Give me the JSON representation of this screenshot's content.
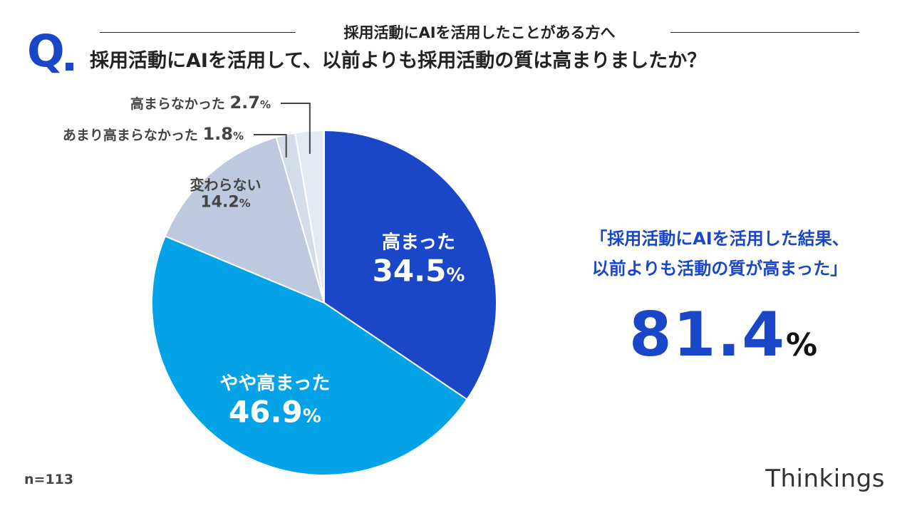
{
  "header": {
    "subtitle": "採用活動にAIを活用したことがある方へ",
    "q_mark": "Q",
    "question": "採用活動にAIを活用して、以前よりも採用活動の質は高まりましたか？"
  },
  "chart_data": {
    "type": "pie",
    "start_angle_deg": 0,
    "direction": "clockwise",
    "slices": [
      {
        "label": "高まった",
        "value": 34.5,
        "value_text": "34.5",
        "unit": "%",
        "color": "#1a46c8",
        "text_color": "#ffffff"
      },
      {
        "label": "やや高まった",
        "value": 46.9,
        "value_text": "46.9",
        "unit": "%",
        "color": "#04a3e7",
        "text_color": "#ffffff"
      },
      {
        "label": "変わらない",
        "value": 14.2,
        "value_text": "14.2",
        "unit": "%",
        "color": "#bcc9df",
        "text_color": "#444444"
      },
      {
        "label": "あまり高まらなかった",
        "value": 1.8,
        "value_text": "1.8",
        "unit": "%",
        "color": "#d3dcea",
        "text_color": "#444444"
      },
      {
        "label": "高まらなかった",
        "value": 2.7,
        "value_text": "2.7",
        "unit": "%",
        "color": "#e4eaf4",
        "text_color": "#444444"
      }
    ]
  },
  "callout": {
    "quote": "「採用活動にAIを活用した結果、\n以前よりも活動の質が高まった」",
    "value": "81.4",
    "unit": "%"
  },
  "footer": {
    "n_label": "n=113",
    "brand": "Thinkings"
  },
  "colors": {
    "accent": "#1a46c8",
    "text": "#222222"
  }
}
